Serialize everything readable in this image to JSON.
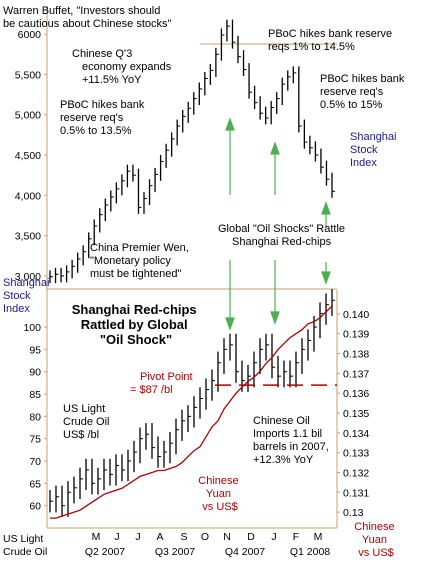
{
  "chart_data": [
    {
      "type": "bar",
      "title": "",
      "series_label": [
        "Shanghai",
        "Stock",
        "Index"
      ],
      "left_axis_label": [
        "Shanghai",
        "Stock",
        "Index"
      ],
      "y_ticks": [
        "6000",
        "5,500",
        "5,000",
        "4,500",
        "4,000",
        "3,500",
        "3,000"
      ],
      "y_tick_values": [
        6000,
        5500,
        5000,
        4500,
        4000,
        3500,
        3000
      ],
      "ylim": [
        2850,
        6250
      ],
      "annotations": [
        {
          "lines": [
            "Warren Buffet, \"Investors should",
            "be cautious about Chinese stocks\""
          ]
        },
        {
          "lines": [
            "Chinese Q'3",
            "economy expands",
            "+11.5% YoY"
          ]
        },
        {
          "lines": [
            "PBoC hikes bank",
            "reserve req's",
            "0.5% to 13.5%"
          ]
        },
        {
          "lines": [
            "PBoC hikes bank reserve",
            "reqs 1% to 14.5%"
          ]
        },
        {
          "lines": [
            "PBoC hikes bank",
            "reserve req's",
            "0.5% to 15%"
          ]
        },
        {
          "lines": [
            "China Premier Wen,",
            "\"Monetary policy",
            "must be tightened\""
          ]
        },
        {
          "lines": [
            "Global \"Oil Shocks\" Rattle",
            "Shanghai Red-chips"
          ]
        }
      ],
      "approx_series": [
        2990,
        3020,
        3000,
        3050,
        3120,
        3210,
        3300,
        3460,
        3620,
        3760,
        3880,
        3980,
        4080,
        4180,
        4300,
        4250,
        3850,
        3960,
        4120,
        4260,
        4420,
        4560,
        4700,
        4860,
        4980,
        5080,
        5200,
        5320,
        5450,
        5550,
        5750,
        5990,
        6100,
        5900,
        5720,
        5560,
        5280,
        5150,
        5020,
        4960,
        5090,
        5200,
        5380,
        5470,
        5520,
        4860,
        4660,
        4590,
        4500,
        4350,
        4200,
        4050
      ]
    },
    {
      "type": "line",
      "title": [
        "Shanghai Red-chips",
        "Rattled by Global",
        "\"Oil Shock\""
      ],
      "y_ticks": [
        "100",
        "95",
        "90",
        "85",
        "80",
        "75",
        "70",
        "65",
        "60"
      ],
      "y_tick_values": [
        100,
        95,
        90,
        85,
        80,
        75,
        70,
        65,
        60
      ],
      "ylim": [
        55,
        106.5
      ],
      "right_ticks": [
        "0.140",
        "0.139",
        "0.138",
        "0.137",
        "0.136",
        "0.135",
        "0.134",
        "0.133",
        "0.132",
        "0.131",
        "0.13"
      ],
      "right_tick_values": [
        0.14,
        0.139,
        0.138,
        0.137,
        0.136,
        0.135,
        0.134,
        0.133,
        0.132,
        0.131,
        0.13
      ],
      "right_ylim": [
        0.1292,
        0.1408
      ],
      "x_months": [
        "M",
        "J",
        "J",
        "A",
        "S",
        "O",
        "N",
        "D",
        "J",
        "F",
        "M"
      ],
      "x_quarters": [
        "Q2 2007",
        "Q3 2007",
        "Q4 2007",
        "Q1 2008"
      ],
      "series": [
        {
          "name": "US Light Crude Oil",
          "approx_values": [
            61,
            62,
            60,
            63,
            64,
            66,
            68,
            65,
            66,
            68,
            67,
            69,
            68,
            70,
            72,
            75,
            76,
            73,
            71,
            72,
            74,
            77,
            79,
            80,
            82,
            84,
            86,
            88,
            92,
            95,
            96,
            90,
            88,
            89,
            92,
            95,
            96,
            91,
            89,
            90,
            89,
            92,
            95,
            97,
            100,
            103,
            105,
            106
          ]
        },
        {
          "name": "Chinese Yuan vs US$",
          "approx_values": [
            0.1297,
            0.1297,
            0.1298,
            0.1299,
            0.13,
            0.1301,
            0.1303,
            0.1305,
            0.1307,
            0.1309,
            0.131,
            0.1311,
            0.1312,
            0.1314,
            0.1316,
            0.1318,
            0.1319,
            0.132,
            0.1321,
            0.1321,
            0.1322,
            0.1323,
            0.1325,
            0.1328,
            0.1331,
            0.1333,
            0.1338,
            0.1343,
            0.1346,
            0.1352,
            0.1356,
            0.136,
            0.1363,
            0.1366,
            0.1368,
            0.1371,
            0.1375,
            0.1378,
            0.1382,
            0.1385,
            0.1388,
            0.139,
            0.1392,
            0.1395,
            0.1396,
            0.1398,
            0.1401,
            0.1404
          ]
        }
      ],
      "pivot_value": 87,
      "annotations": [
        {
          "lines": [
            "Pivot Point",
            "= $87 /bl"
          ]
        },
        {
          "lines": [
            "US Light",
            "Crude Oil",
            "US$ /bl"
          ]
        },
        {
          "lines": [
            "Chinese Oil",
            "Imports 1.1 bil",
            "barrels in 2007,",
            "+12.3% YoY"
          ]
        },
        {
          "lines": [
            "Chinese",
            "Yuan",
            "vs US$"
          ]
        }
      ],
      "left_axis_label": [
        "US Light",
        "Crude Oil"
      ],
      "right_axis_label": [
        "Chinese",
        "Yuan",
        "vs US$"
      ]
    }
  ],
  "colors": {
    "price_bars": "#000000",
    "yuan_line": "#b00000",
    "arrows": "#4caf50",
    "pivot_line": "#b00000",
    "blue_text": "#1a1a8c",
    "axis": "#c8a070"
  }
}
